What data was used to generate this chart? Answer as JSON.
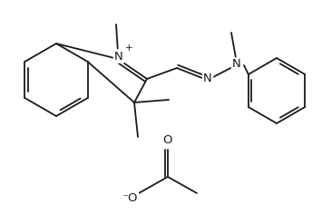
{
  "bg": "#ffffff",
  "lc": "#1a1a1a",
  "lw": 1.3,
  "fs": 7.5,
  "figsize": [
    3.55,
    2.47
  ],
  "dpi": 100,
  "xlim": [
    0,
    355
  ],
  "ylim": [
    0,
    247
  ]
}
